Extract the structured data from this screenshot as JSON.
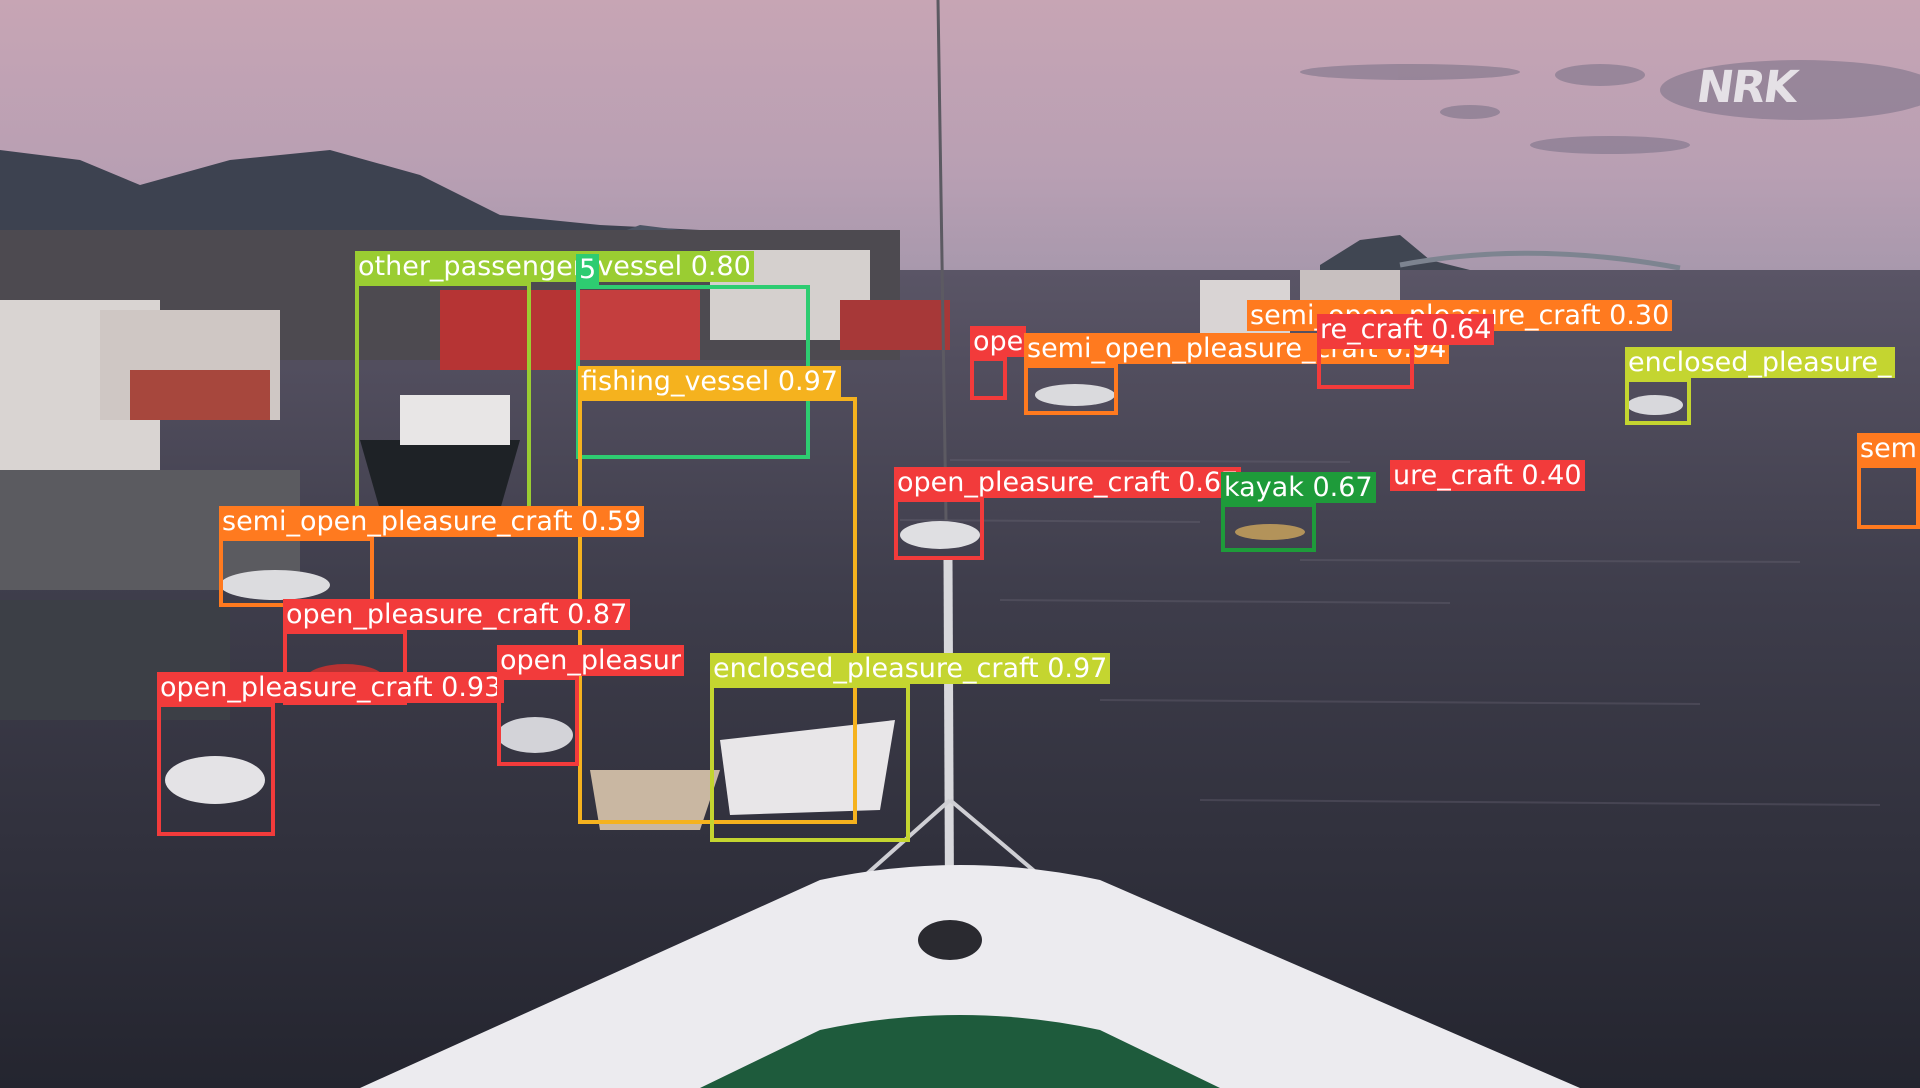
{
  "watermark": "NRK",
  "detections": [
    {
      "label": "other_passenger_vessel 0.80",
      "color": "#9ACD32"
    },
    {
      "label": "5",
      "color": "#2ECC71"
    },
    {
      "label": "fishing_vessel 0.97",
      "color": "#F5B21E"
    },
    {
      "label": "semi_open_pleasure_craft 0.59",
      "color": "#FF7A1F"
    },
    {
      "label": "open_pleasure_craft 0.87",
      "color": "#F23B3B"
    },
    {
      "label": "open_pleasure_craft 0.93",
      "color": "#F23B3B"
    },
    {
      "label": "open_pleasur",
      "color": "#F23B3B"
    },
    {
      "label": "enclosed_pleasure_craft 0.97",
      "color": "#C4D530"
    },
    {
      "label": "open_pleasure_craft 0.67",
      "color": "#F23B3B"
    },
    {
      "label": "kayak 0.67",
      "color": "#1E9B3A"
    },
    {
      "label": "ure_craft 0.40",
      "color": "#F23B3B"
    },
    {
      "label": "ope",
      "color": "#F23B3B"
    },
    {
      "label": "semi_open_pleasure_craft 0.94",
      "color": "#FF7A1F"
    },
    {
      "label": "semi_open_pleasure_craft 0.30",
      "color": "#FF7A1F"
    },
    {
      "label": "re_craft 0.64",
      "color": "#F23B3B"
    },
    {
      "label": "enclosed_pleasure_",
      "color": "#C4D530"
    },
    {
      "label": "sem",
      "color": "#FF7A1F"
    }
  ]
}
